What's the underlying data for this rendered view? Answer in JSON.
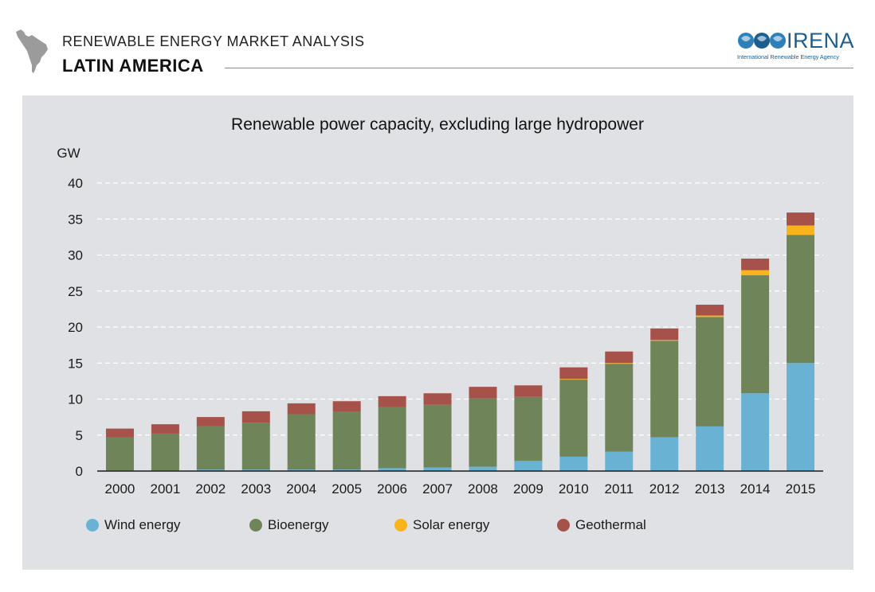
{
  "header": {
    "supertitle": "RENEWABLE ENERGY MARKET ANALYSIS",
    "title": "LATIN AMERICA"
  },
  "logo": {
    "name": "IRENA",
    "subtitle": "International Renewable Energy Agency",
    "color": "#1b5e8f"
  },
  "chart_data": {
    "type": "bar",
    "stacked": true,
    "title": "Renewable power capacity, excluding large hydropower",
    "ylabel": "GW",
    "xlabel": "",
    "ylim": [
      0,
      40
    ],
    "yticks": [
      0,
      5,
      10,
      15,
      20,
      25,
      30,
      35,
      40
    ],
    "grid": true,
    "legend_position": "bottom",
    "categories": [
      "2000",
      "2001",
      "2002",
      "2003",
      "2004",
      "2005",
      "2006",
      "2007",
      "2008",
      "2009",
      "2010",
      "2011",
      "2012",
      "2013",
      "2014",
      "2015"
    ],
    "series": [
      {
        "name": "Wind energy",
        "color": "#6ab2d3",
        "values": [
          0.1,
          0.1,
          0.2,
          0.2,
          0.2,
          0.2,
          0.4,
          0.5,
          0.6,
          1.4,
          2.0,
          2.7,
          4.7,
          6.2,
          10.8,
          15.0
        ]
      },
      {
        "name": "Bioenergy",
        "color": "#6f8559",
        "values": [
          4.6,
          5.1,
          6.0,
          6.5,
          7.7,
          8.0,
          8.5,
          8.7,
          9.5,
          8.9,
          10.7,
          12.2,
          13.4,
          15.2,
          16.4,
          17.8
        ]
      },
      {
        "name": "Solar energy",
        "color": "#f9b31b",
        "values": [
          0,
          0,
          0,
          0,
          0,
          0,
          0,
          0,
          0,
          0,
          0.1,
          0.1,
          0.1,
          0.2,
          0.7,
          1.3
        ]
      },
      {
        "name": "Geothermal",
        "color": "#a6524b",
        "values": [
          1.2,
          1.3,
          1.3,
          1.6,
          1.5,
          1.5,
          1.5,
          1.6,
          1.6,
          1.6,
          1.6,
          1.6,
          1.6,
          1.5,
          1.6,
          1.8
        ]
      }
    ]
  }
}
